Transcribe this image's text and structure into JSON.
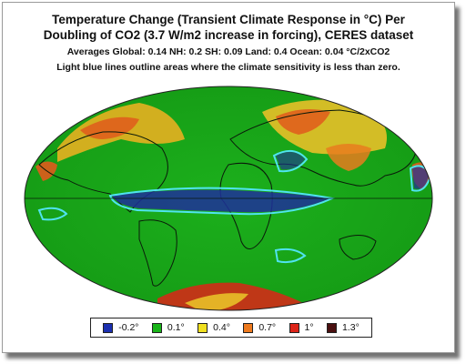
{
  "title_line1": "Temperature Change (Transient Climate Response in °C) Per",
  "title_line2": "Doubling of CO2 (3.7 W/m2 increase in forcing), CERES dataset",
  "averages": "Averages Global: 0.14   NH: 0.2   SH: 0.09   Land: 0.4   Ocean: 0.04 °C/2xCO2",
  "note": "Light blue lines outline areas where the climate sensitivity is less than zero.",
  "legend": [
    {
      "label": "-0.2°",
      "color": "#1b2fb0"
    },
    {
      "label": "0.1°",
      "color": "#18b418"
    },
    {
      "label": "0.4°",
      "color": "#f0e020"
    },
    {
      "label": "0.7°",
      "color": "#ee7a1e"
    },
    {
      "label": "1°",
      "color": "#dd2418"
    },
    {
      "label": "1.3°",
      "color": "#4a1010"
    }
  ],
  "colors": {
    "ocean_base": "#18a818",
    "land_base": "#22b822",
    "negative_outline": "#4fe3ef",
    "coastline": "#0a1a0a"
  }
}
